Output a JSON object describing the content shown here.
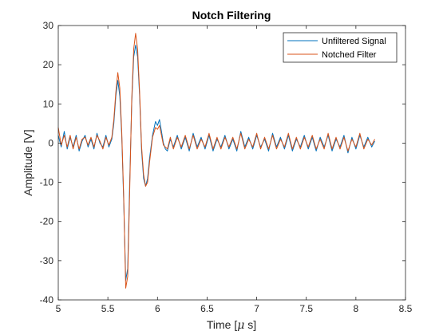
{
  "chart_data": {
    "type": "line",
    "title": "Notch Filtering",
    "xlabel": "Time [",
    "xlabel_mu": "μ",
    "xlabel_tail": " s]",
    "ylabel": "Amplitude [V]",
    "xlim": [
      5,
      8.5
    ],
    "ylim": [
      -40,
      30
    ],
    "xticks": [
      "5",
      "5.5",
      "6",
      "6.5",
      "7",
      "7.5",
      "8",
      "8.5"
    ],
    "yticks": [
      "-40",
      "-30",
      "-20",
      "-10",
      "0",
      "10",
      "20",
      "30"
    ],
    "legend_position": "top-right",
    "grid": false,
    "series": [
      {
        "name": "Unfiltered Signal",
        "color": "#0072BD",
        "points": [
          [
            5.0,
            2.0
          ],
          [
            5.03,
            -1.0
          ],
          [
            5.06,
            3.0
          ],
          [
            5.09,
            -1.5
          ],
          [
            5.12,
            1.5
          ],
          [
            5.15,
            -1.0
          ],
          [
            5.18,
            2.0
          ],
          [
            5.21,
            -2.0
          ],
          [
            5.24,
            0.5
          ],
          [
            5.27,
            2.0
          ],
          [
            5.3,
            -1.0
          ],
          [
            5.33,
            1.0
          ],
          [
            5.36,
            -1.5
          ],
          [
            5.39,
            2.5
          ],
          [
            5.42,
            0.0
          ],
          [
            5.45,
            -1.0
          ],
          [
            5.48,
            2.0
          ],
          [
            5.51,
            -1.0
          ],
          [
            5.54,
            1.0
          ],
          [
            5.56,
            5.0
          ],
          [
            5.58,
            12.0
          ],
          [
            5.6,
            16.0
          ],
          [
            5.62,
            12.0
          ],
          [
            5.64,
            2.0
          ],
          [
            5.66,
            -15.0
          ],
          [
            5.68,
            -35.0
          ],
          [
            5.7,
            -32.0
          ],
          [
            5.72,
            -10.0
          ],
          [
            5.74,
            10.0
          ],
          [
            5.76,
            22.0
          ],
          [
            5.78,
            25.0
          ],
          [
            5.8,
            22.0
          ],
          [
            5.82,
            12.0
          ],
          [
            5.84,
            -2.0
          ],
          [
            5.86,
            -9.0
          ],
          [
            5.88,
            -11.0
          ],
          [
            5.9,
            -9.0
          ],
          [
            5.92,
            -4.0
          ],
          [
            5.95,
            2.0
          ],
          [
            5.98,
            5.5
          ],
          [
            6.0,
            4.5
          ],
          [
            6.02,
            6.0
          ],
          [
            6.04,
            3.0
          ],
          [
            6.06,
            0.0
          ],
          [
            6.08,
            -1.5
          ],
          [
            6.1,
            -2.0
          ],
          [
            6.13,
            1.0
          ],
          [
            6.16,
            -1.0
          ],
          [
            6.2,
            2.0
          ],
          [
            6.24,
            -1.5
          ],
          [
            6.28,
            1.5
          ],
          [
            6.32,
            -2.0
          ],
          [
            6.36,
            2.5
          ],
          [
            6.4,
            -1.0
          ],
          [
            6.44,
            1.5
          ],
          [
            6.48,
            -1.5
          ],
          [
            6.52,
            2.0
          ],
          [
            6.56,
            -2.0
          ],
          [
            6.6,
            1.0
          ],
          [
            6.64,
            -1.0
          ],
          [
            6.68,
            2.0
          ],
          [
            6.72,
            -1.5
          ],
          [
            6.76,
            1.0
          ],
          [
            6.8,
            -2.0
          ],
          [
            6.84,
            3.0
          ],
          [
            6.88,
            -1.0
          ],
          [
            6.92,
            1.5
          ],
          [
            6.96,
            -1.5
          ],
          [
            7.0,
            2.0
          ],
          [
            7.04,
            -1.0
          ],
          [
            7.08,
            1.0
          ],
          [
            7.12,
            -2.0
          ],
          [
            7.16,
            2.5
          ],
          [
            7.2,
            -1.0
          ],
          [
            7.24,
            1.5
          ],
          [
            7.28,
            -1.5
          ],
          [
            7.32,
            2.0
          ],
          [
            7.36,
            -2.0
          ],
          [
            7.4,
            1.0
          ],
          [
            7.44,
            -1.0
          ],
          [
            7.48,
            2.0
          ],
          [
            7.52,
            -1.5
          ],
          [
            7.56,
            1.5
          ],
          [
            7.6,
            -2.0
          ],
          [
            7.64,
            1.5
          ],
          [
            7.68,
            -1.0
          ],
          [
            7.72,
            2.0
          ],
          [
            7.76,
            -2.0
          ],
          [
            7.8,
            1.0
          ],
          [
            7.84,
            -1.0
          ],
          [
            7.88,
            2.0
          ],
          [
            7.92,
            -2.5
          ],
          [
            7.96,
            1.5
          ],
          [
            8.0,
            -1.5
          ],
          [
            8.04,
            2.0
          ],
          [
            8.08,
            -1.0
          ],
          [
            8.12,
            1.5
          ],
          [
            8.16,
            -1.0
          ],
          [
            8.19,
            0.5
          ]
        ]
      },
      {
        "name": "Notched Filter",
        "color": "#D95319",
        "points": [
          [
            5.0,
            4.0
          ],
          [
            5.03,
            -0.5
          ],
          [
            5.06,
            2.0
          ],
          [
            5.09,
            -1.0
          ],
          [
            5.12,
            2.0
          ],
          [
            5.15,
            -1.5
          ],
          [
            5.18,
            1.5
          ],
          [
            5.21,
            -1.5
          ],
          [
            5.24,
            1.0
          ],
          [
            5.27,
            1.5
          ],
          [
            5.3,
            -0.5
          ],
          [
            5.33,
            1.5
          ],
          [
            5.36,
            -1.0
          ],
          [
            5.39,
            2.0
          ],
          [
            5.42,
            0.5
          ],
          [
            5.45,
            -1.5
          ],
          [
            5.48,
            1.5
          ],
          [
            5.51,
            -0.5
          ],
          [
            5.54,
            1.5
          ],
          [
            5.56,
            6.0
          ],
          [
            5.58,
            13.0
          ],
          [
            5.6,
            18.0
          ],
          [
            5.62,
            14.0
          ],
          [
            5.64,
            3.0
          ],
          [
            5.66,
            -14.0
          ],
          [
            5.68,
            -37.0
          ],
          [
            5.7,
            -34.0
          ],
          [
            5.72,
            -12.0
          ],
          [
            5.74,
            11.0
          ],
          [
            5.76,
            24.0
          ],
          [
            5.78,
            28.0
          ],
          [
            5.8,
            24.0
          ],
          [
            5.82,
            13.0
          ],
          [
            5.84,
            -1.0
          ],
          [
            5.86,
            -8.0
          ],
          [
            5.88,
            -11.0
          ],
          [
            5.9,
            -10.0
          ],
          [
            5.92,
            -5.0
          ],
          [
            5.95,
            1.5
          ],
          [
            5.98,
            4.0
          ],
          [
            6.0,
            3.5
          ],
          [
            6.02,
            4.5
          ],
          [
            6.04,
            2.0
          ],
          [
            6.06,
            -0.5
          ],
          [
            6.08,
            -1.0
          ],
          [
            6.1,
            -1.5
          ],
          [
            6.13,
            1.5
          ],
          [
            6.16,
            -1.5
          ],
          [
            6.2,
            1.5
          ],
          [
            6.24,
            -1.0
          ],
          [
            6.28,
            2.0
          ],
          [
            6.32,
            -1.5
          ],
          [
            6.36,
            2.0
          ],
          [
            6.4,
            -1.5
          ],
          [
            6.44,
            1.0
          ],
          [
            6.48,
            -1.0
          ],
          [
            6.52,
            2.5
          ],
          [
            6.56,
            -1.5
          ],
          [
            6.6,
            1.5
          ],
          [
            6.64,
            -1.5
          ],
          [
            6.68,
            1.5
          ],
          [
            6.72,
            -1.0
          ],
          [
            6.76,
            1.5
          ],
          [
            6.8,
            -1.5
          ],
          [
            6.84,
            2.5
          ],
          [
            6.88,
            -1.5
          ],
          [
            6.92,
            1.0
          ],
          [
            6.96,
            -1.0
          ],
          [
            7.0,
            2.5
          ],
          [
            7.04,
            -1.5
          ],
          [
            7.08,
            1.5
          ],
          [
            7.12,
            -1.5
          ],
          [
            7.16,
            2.0
          ],
          [
            7.2,
            -1.5
          ],
          [
            7.24,
            1.0
          ],
          [
            7.28,
            -1.0
          ],
          [
            7.32,
            2.5
          ],
          [
            7.36,
            -1.5
          ],
          [
            7.4,
            1.5
          ],
          [
            7.44,
            -1.5
          ],
          [
            7.48,
            1.5
          ],
          [
            7.52,
            -1.0
          ],
          [
            7.56,
            2.0
          ],
          [
            7.6,
            -1.5
          ],
          [
            7.64,
            1.0
          ],
          [
            7.68,
            -1.5
          ],
          [
            7.72,
            2.5
          ],
          [
            7.76,
            -1.5
          ],
          [
            7.8,
            1.5
          ],
          [
            7.84,
            -1.5
          ],
          [
            7.88,
            1.5
          ],
          [
            7.92,
            -2.0
          ],
          [
            7.96,
            1.0
          ],
          [
            8.0,
            -1.0
          ],
          [
            8.04,
            2.5
          ],
          [
            8.08,
            -1.5
          ],
          [
            8.12,
            1.0
          ],
          [
            8.16,
            -0.5
          ],
          [
            8.19,
            1.0
          ]
        ]
      }
    ]
  }
}
